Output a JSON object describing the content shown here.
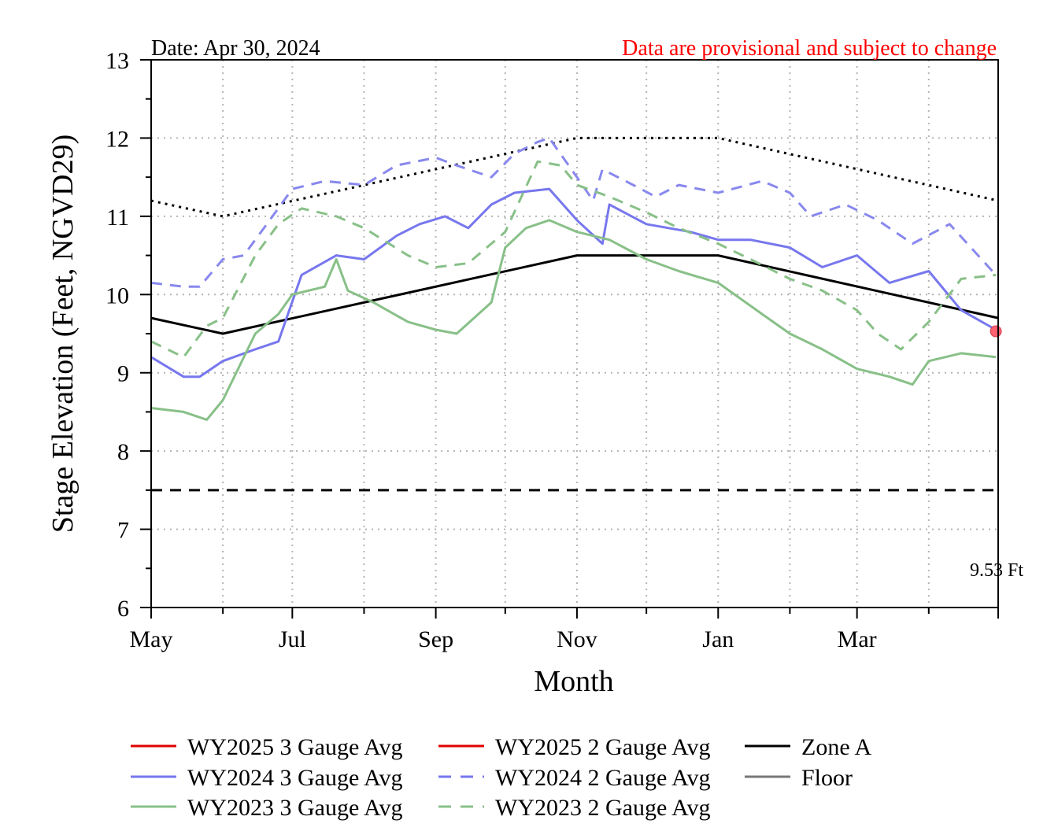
{
  "header": {
    "date_label": "Date: Apr 30, 2024",
    "disclaimer": "Data are provisional and subject to change"
  },
  "current_value_label": "9.53 Ft",
  "legend": {
    "items": [
      {
        "label": "WY2025 3 Gauge Avg",
        "color": "#e00000",
        "dash": "solid"
      },
      {
        "label": "WY2025 2 Gauge Avg",
        "color": "#e00000",
        "dash": "solid"
      },
      {
        "label": "Zone A",
        "color": "#000000",
        "dash": "solid"
      },
      {
        "label": "WY2024 3 Gauge Avg",
        "color": "#7777ee",
        "dash": "solid"
      },
      {
        "label": "WY2024 2 Gauge Avg",
        "color": "#7777ee",
        "dash": "dashed"
      },
      {
        "label": "Floor",
        "color": "#777777",
        "dash": "solid"
      },
      {
        "label": "WY2023 3 Gauge Avg",
        "color": "#88c088",
        "dash": "solid"
      },
      {
        "label": "WY2023 2 Gauge Avg",
        "color": "#88c088",
        "dash": "dashed"
      }
    ]
  },
  "chart_data": {
    "type": "line",
    "xlabel": "Month",
    "ylabel": "Stage Elevation (Feet, NGVD29)",
    "ylim": [
      6,
      13
    ],
    "xlim": [
      "2023-05-01",
      "2024-05-01"
    ],
    "x_tick_labels": [
      "May",
      "Jul",
      "Sep",
      "Nov",
      "Jan",
      "Mar"
    ],
    "y_tick_labels": [
      "6",
      "7",
      "8",
      "9",
      "10",
      "11",
      "12",
      "13"
    ],
    "grid": true,
    "current_point": {
      "x": "2024-04-30",
      "y": 9.53,
      "color": "#ff6070"
    },
    "series": [
      {
        "name": "Zone A",
        "color": "#000000",
        "dash": "solid",
        "x": [
          "2023-05-01",
          "2023-06-01",
          "2023-11-01",
          "2024-01-01",
          "2024-05-01"
        ],
        "y": [
          9.7,
          9.5,
          10.5,
          10.5,
          9.7
        ]
      },
      {
        "color": "#000000",
        "dash": "dotted",
        "x": [
          "2023-05-01",
          "2023-06-01",
          "2023-11-01",
          "2024-01-01",
          "2024-05-01"
        ],
        "y": [
          11.2,
          11.0,
          12.0,
          12.0,
          11.2
        ]
      },
      {
        "color": "#000000",
        "dash": "dashed",
        "x": [
          "2023-05-01",
          "2024-05-01"
        ],
        "y": [
          7.5,
          7.5
        ]
      },
      {
        "name": "WY2024 2 Gauge Avg",
        "color": "#8888ee",
        "dash": "dashed",
        "x": [
          "2023-05-01",
          "2023-05-15",
          "2023-05-22",
          "2023-06-01",
          "2023-06-10",
          "2023-06-20",
          "2023-07-01",
          "2023-07-15",
          "2023-08-01",
          "2023-08-15",
          "2023-09-01",
          "2023-09-10",
          "2023-09-25",
          "2023-10-05",
          "2023-10-15",
          "2023-10-20",
          "2023-11-01",
          "2023-11-08",
          "2023-11-12",
          "2023-11-22",
          "2023-12-05",
          "2023-12-15",
          "2024-01-01",
          "2024-01-20",
          "2024-02-01",
          "2024-02-10",
          "2024-02-25",
          "2024-03-10",
          "2024-03-25",
          "2024-04-10",
          "2024-04-30"
        ],
        "y": [
          10.15,
          10.1,
          10.1,
          10.45,
          10.5,
          10.9,
          11.35,
          11.45,
          11.4,
          11.65,
          11.75,
          11.65,
          11.5,
          11.8,
          11.95,
          12.0,
          11.5,
          11.2,
          11.6,
          11.45,
          11.25,
          11.4,
          11.3,
          11.45,
          11.3,
          11.0,
          11.15,
          10.95,
          10.65,
          10.9,
          10.25
        ]
      },
      {
        "name": "WY2024 3 Gauge Avg",
        "color": "#7777ee",
        "dash": "solid",
        "x": [
          "2023-05-01",
          "2023-05-15",
          "2023-05-22",
          "2023-06-01",
          "2023-06-15",
          "2023-06-25",
          "2023-07-05",
          "2023-07-20",
          "2023-08-01",
          "2023-08-15",
          "2023-08-25",
          "2023-09-05",
          "2023-09-15",
          "2023-09-25",
          "2023-10-05",
          "2023-10-20",
          "2023-11-01",
          "2023-11-12",
          "2023-11-15",
          "2023-12-01",
          "2023-12-20",
          "2024-01-01",
          "2024-01-15",
          "2024-02-01",
          "2024-02-15",
          "2024-03-01",
          "2024-03-15",
          "2024-04-01",
          "2024-04-15",
          "2024-04-30"
        ],
        "y": [
          9.2,
          8.95,
          8.95,
          9.15,
          9.3,
          9.4,
          10.25,
          10.5,
          10.45,
          10.75,
          10.9,
          11.0,
          10.85,
          11.15,
          11.3,
          11.35,
          10.95,
          10.65,
          11.15,
          10.9,
          10.8,
          10.7,
          10.7,
          10.6,
          10.35,
          10.5,
          10.15,
          10.3,
          9.8,
          9.55
        ]
      },
      {
        "name": "WY2023 2 Gauge Avg",
        "color": "#88c088",
        "dash": "dashed",
        "x": [
          "2023-05-01",
          "2023-05-15",
          "2023-05-25",
          "2023-06-01",
          "2023-06-15",
          "2023-06-25",
          "2023-07-05",
          "2023-07-20",
          "2023-08-01",
          "2023-08-20",
          "2023-09-01",
          "2023-09-15",
          "2023-10-01",
          "2023-10-15",
          "2023-10-25",
          "2023-11-01",
          "2023-11-15",
          "2023-12-01",
          "2023-12-15",
          "2024-01-01",
          "2024-01-15",
          "2024-02-01",
          "2024-02-15",
          "2024-03-01",
          "2024-03-10",
          "2024-03-20",
          "2024-04-01",
          "2024-04-15",
          "2024-04-30"
        ],
        "y": [
          9.4,
          9.2,
          9.6,
          9.7,
          10.5,
          10.9,
          11.1,
          11.0,
          10.85,
          10.5,
          10.35,
          10.4,
          10.8,
          11.7,
          11.65,
          11.4,
          11.25,
          11.05,
          10.85,
          10.65,
          10.45,
          10.2,
          10.05,
          9.8,
          9.5,
          9.3,
          9.65,
          10.2,
          10.25
        ]
      },
      {
        "name": "WY2023 3 Gauge Avg",
        "color": "#88c088",
        "dash": "solid",
        "x": [
          "2023-05-01",
          "2023-05-15",
          "2023-05-25",
          "2023-06-01",
          "2023-06-15",
          "2023-06-25",
          "2023-07-01",
          "2023-07-15",
          "2023-07-20",
          "2023-07-25",
          "2023-08-05",
          "2023-08-20",
          "2023-09-01",
          "2023-09-10",
          "2023-09-25",
          "2023-10-01",
          "2023-10-10",
          "2023-10-20",
          "2023-11-01",
          "2023-11-15",
          "2023-12-01",
          "2023-12-15",
          "2024-01-01",
          "2024-01-20",
          "2024-02-01",
          "2024-02-15",
          "2024-03-01",
          "2024-03-15",
          "2024-03-25",
          "2024-04-01",
          "2024-04-15",
          "2024-04-30"
        ],
        "y": [
          8.55,
          8.5,
          8.4,
          8.65,
          9.5,
          9.75,
          10.0,
          10.1,
          10.45,
          10.05,
          9.9,
          9.65,
          9.55,
          9.5,
          9.9,
          10.6,
          10.85,
          10.95,
          10.8,
          10.7,
          10.45,
          10.3,
          10.15,
          9.75,
          9.5,
          9.3,
          9.05,
          8.95,
          8.85,
          9.15,
          9.25,
          9.2
        ]
      }
    ]
  }
}
